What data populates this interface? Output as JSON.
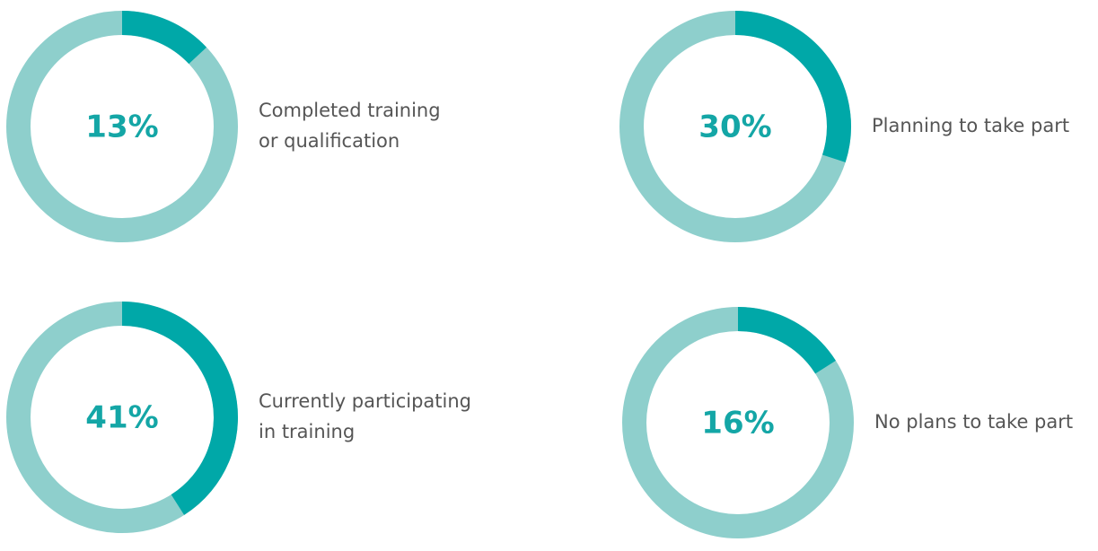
{
  "chart_data": [
    {
      "type": "donut",
      "values": [
        13
      ],
      "value_labels": [
        "13%"
      ],
      "label": [
        "Completed training",
        "or qualification"
      ],
      "color": "#00a8a8",
      "track_color": "#8ecfcc"
    },
    {
      "type": "donut",
      "values": [
        30
      ],
      "value_labels": [
        "30%"
      ],
      "label": [
        "Planning to take part"
      ],
      "color": "#00a8a8",
      "track_color": "#8ecfcc"
    },
    {
      "type": "donut",
      "values": [
        41
      ],
      "value_labels": [
        "41%"
      ],
      "label": [
        "Currently participating",
        "in training"
      ],
      "color": "#00a8a8",
      "track_color": "#8ecfcc"
    },
    {
      "type": "donut",
      "values": [
        16
      ],
      "value_labels": [
        "16%"
      ],
      "label": [
        "No plans to take part"
      ],
      "color": "#00a8a8",
      "track_color": "#8ecfcc"
    }
  ]
}
